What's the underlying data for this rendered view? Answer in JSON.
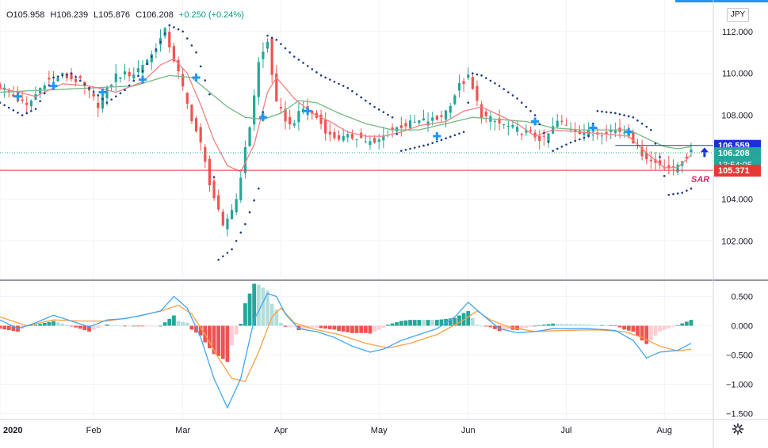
{
  "header": {
    "open": "O105.958",
    "high": "H106.239",
    "low": "L105.876",
    "close": "C106.208",
    "change": "+0.250 (+0.24%)"
  },
  "currency_label": "JPY",
  "price_axis": {
    "ticks": [
      "112.000",
      "110.000",
      "108.000",
      "106.000",
      "104.000",
      "102.000"
    ],
    "tick_values": [
      112,
      110,
      108,
      106,
      104,
      102
    ],
    "range": [
      100.2,
      113.2
    ]
  },
  "price_labels": {
    "ma_value": "106.559",
    "last_price": "106.208",
    "countdown": "13:54:05",
    "sar_value": "105.371",
    "sar_tag": "SAR"
  },
  "macd_axis": {
    "ticks": [
      "0.500",
      "0.000",
      "−0.500",
      "−1.000",
      "−1.500"
    ],
    "tick_values": [
      0.5,
      0,
      -0.5,
      -1.0,
      -1.5
    ],
    "range": [
      -1.6,
      0.75
    ]
  },
  "time_axis": {
    "labels": [
      "2020",
      "Feb",
      "Mar",
      "Apr",
      "May",
      "Jun",
      "Jul",
      "Aug"
    ],
    "label_index": [
      0,
      21,
      41,
      63,
      85,
      105,
      127,
      149
    ]
  },
  "colors": {
    "up": "#26a69a",
    "down": "#ef5350",
    "fast_ma": "#f08080",
    "slow_ma": "#74b882",
    "sar": "#1e3a8a",
    "macd": "#42a5f5",
    "signal": "#ff9f43",
    "hist_up_strong": "#26a69a",
    "hist_up_weak": "#b2dfdb",
    "hist_down_strong": "#ef5350",
    "hist_down_weak": "#ffcdd2",
    "marker": "#2196f3",
    "horizontal_line": "#e53935",
    "trend_line": "#1e2fd8"
  },
  "chart_data": {
    "type": "candlestick",
    "x_unit": "trading day (Jan 2020 – Aug 2020)",
    "anchors_close": [
      [
        0,
        109.4
      ],
      [
        6,
        108.4
      ],
      [
        10,
        109.6
      ],
      [
        14,
        109.9
      ],
      [
        18,
        109.6
      ],
      [
        22,
        108.5
      ],
      [
        26,
        109.9
      ],
      [
        30,
        110.0
      ],
      [
        34,
        110.9
      ],
      [
        37,
        112.0
      ],
      [
        40,
        110.0
      ],
      [
        42,
        108.5
      ],
      [
        45,
        106.6
      ],
      [
        47,
        104.8
      ],
      [
        50,
        102.6
      ],
      [
        53,
        104.0
      ],
      [
        56,
        107.5
      ],
      [
        58,
        110.5
      ],
      [
        60,
        111.5
      ],
      [
        62,
        108.5
      ],
      [
        65,
        107.5
      ],
      [
        68,
        108.3
      ],
      [
        71,
        107.9
      ],
      [
        74,
        107.0
      ],
      [
        77,
        106.9
      ],
      [
        80,
        107.0
      ],
      [
        84,
        106.6
      ],
      [
        87,
        107.2
      ],
      [
        90,
        107.5
      ],
      [
        94,
        107.7
      ],
      [
        98,
        107.8
      ],
      [
        100,
        108.2
      ],
      [
        103,
        109.4
      ],
      [
        105,
        109.8
      ],
      [
        108,
        108.0
      ],
      [
        112,
        107.6
      ],
      [
        116,
        107.3
      ],
      [
        119,
        107.1
      ],
      [
        122,
        106.8
      ],
      [
        125,
        107.7
      ],
      [
        129,
        107.3
      ],
      [
        133,
        107.1
      ],
      [
        137,
        107.3
      ],
      [
        141,
        107.2
      ],
      [
        143,
        106.4
      ],
      [
        146,
        105.8
      ],
      [
        149,
        105.6
      ],
      [
        151,
        105.4
      ],
      [
        153,
        105.9
      ],
      [
        155,
        106.2
      ]
    ],
    "fast_ma_anchors": [
      [
        0,
        109.3
      ],
      [
        8,
        108.9
      ],
      [
        14,
        109.5
      ],
      [
        20,
        109.4
      ],
      [
        26,
        109.1
      ],
      [
        32,
        109.6
      ],
      [
        36,
        110.4
      ],
      [
        39,
        110.7
      ],
      [
        42,
        110.0
      ],
      [
        45,
        108.5
      ],
      [
        48,
        106.8
      ],
      [
        51,
        105.6
      ],
      [
        54,
        105.3
      ],
      [
        57,
        106.6
      ],
      [
        60,
        109.1
      ],
      [
        62,
        109.8
      ],
      [
        66,
        108.8
      ],
      [
        70,
        108.1
      ],
      [
        74,
        107.7
      ],
      [
        78,
        107.2
      ],
      [
        82,
        107.0
      ],
      [
        86,
        107.0
      ],
      [
        90,
        107.2
      ],
      [
        94,
        107.5
      ],
      [
        100,
        107.7
      ],
      [
        104,
        108.2
      ],
      [
        108,
        108.4
      ],
      [
        112,
        108.0
      ],
      [
        116,
        107.6
      ],
      [
        120,
        107.0
      ],
      [
        124,
        107.3
      ],
      [
        130,
        107.2
      ],
      [
        136,
        107.1
      ],
      [
        141,
        107.0
      ],
      [
        145,
        106.2
      ],
      [
        149,
        105.5
      ],
      [
        152,
        105.5
      ],
      [
        155,
        106.1
      ]
    ],
    "slow_ma_anchors": [
      [
        0,
        109.1
      ],
      [
        10,
        109.2
      ],
      [
        20,
        109.3
      ],
      [
        30,
        109.4
      ],
      [
        38,
        109.9
      ],
      [
        43,
        109.8
      ],
      [
        47,
        109.1
      ],
      [
        51,
        108.4
      ],
      [
        55,
        107.9
      ],
      [
        59,
        107.8
      ],
      [
        63,
        108.1
      ],
      [
        67,
        108.7
      ],
      [
        71,
        108.6
      ],
      [
        76,
        108.1
      ],
      [
        82,
        107.6
      ],
      [
        88,
        107.3
      ],
      [
        94,
        107.3
      ],
      [
        100,
        107.6
      ],
      [
        106,
        107.9
      ],
      [
        112,
        107.8
      ],
      [
        118,
        107.7
      ],
      [
        124,
        107.4
      ],
      [
        130,
        107.3
      ],
      [
        136,
        107.3
      ],
      [
        141,
        107.3
      ],
      [
        145,
        106.9
      ],
      [
        149,
        106.5
      ],
      [
        152,
        106.4
      ],
      [
        155,
        106.5
      ]
    ],
    "sar_anchors": [
      [
        0,
        108.6
      ],
      [
        5,
        108.0
      ],
      [
        8,
        108.3
      ],
      [
        12,
        109.8
      ],
      [
        16,
        110.0
      ],
      [
        20,
        109.3
      ],
      [
        24,
        108.6
      ],
      [
        28,
        109.2
      ],
      [
        32,
        110.1
      ],
      [
        36,
        111.5
      ],
      [
        38,
        112.3
      ],
      [
        41,
        112.0
      ],
      [
        44,
        111.0
      ],
      [
        47,
        109.0
      ],
      [
        49,
        101.1
      ],
      [
        52,
        101.6
      ],
      [
        55,
        102.8
      ],
      [
        58,
        104.5
      ],
      [
        60,
        111.8
      ],
      [
        62,
        111.6
      ],
      [
        66,
        110.8
      ],
      [
        72,
        109.9
      ],
      [
        78,
        109.3
      ],
      [
        84,
        108.4
      ],
      [
        88,
        107.9
      ],
      [
        90,
        106.3
      ],
      [
        96,
        106.6
      ],
      [
        100,
        106.9
      ],
      [
        104,
        107.2
      ],
      [
        106,
        110.0
      ],
      [
        108,
        109.9
      ],
      [
        112,
        109.4
      ],
      [
        116,
        108.8
      ],
      [
        120,
        108.0
      ],
      [
        124,
        106.3
      ],
      [
        128,
        106.7
      ],
      [
        132,
        107.0
      ],
      [
        134,
        108.2
      ],
      [
        138,
        108.1
      ],
      [
        142,
        107.9
      ],
      [
        146,
        107.3
      ],
      [
        148,
        106.0
      ],
      [
        150,
        104.2
      ],
      [
        153,
        104.3
      ],
      [
        155,
        104.5
      ]
    ],
    "markers": [
      {
        "x": 4,
        "y": 108.9
      },
      {
        "x": 12,
        "y": 109.4
      },
      {
        "x": 23,
        "y": 109.1
      },
      {
        "x": 32,
        "y": 109.7
      },
      {
        "x": 44,
        "y": 109.8
      },
      {
        "x": 59,
        "y": 107.9
      },
      {
        "x": 69,
        "y": 108.2
      },
      {
        "x": 98,
        "y": 107.0
      },
      {
        "x": 120,
        "y": 107.7
      },
      {
        "x": 133,
        "y": 107.4
      },
      {
        "x": 141,
        "y": 107.2
      }
    ],
    "arrow": {
      "x": 158,
      "y": 106.2
    },
    "horizontal_level": 105.371,
    "macd_anchors": [
      [
        0,
        0.1
      ],
      [
        4,
        -0.05
      ],
      [
        8,
        0.05
      ],
      [
        12,
        0.18
      ],
      [
        16,
        0.08
      ],
      [
        20,
        -0.02
      ],
      [
        24,
        0.1
      ],
      [
        28,
        0.12
      ],
      [
        32,
        0.18
      ],
      [
        36,
        0.25
      ],
      [
        39,
        0.5
      ],
      [
        42,
        0.3
      ],
      [
        45,
        -0.2
      ],
      [
        48,
        -0.9
      ],
      [
        51,
        -1.4
      ],
      [
        54,
        -0.9
      ],
      [
        57,
        0.1
      ],
      [
        60,
        0.55
      ],
      [
        62,
        0.5
      ],
      [
        64,
        0.2
      ],
      [
        67,
        -0.05
      ],
      [
        71,
        -0.1
      ],
      [
        75,
        -0.2
      ],
      [
        79,
        -0.35
      ],
      [
        83,
        -0.45
      ],
      [
        86,
        -0.4
      ],
      [
        90,
        -0.25
      ],
      [
        94,
        -0.15
      ],
      [
        98,
        -0.05
      ],
      [
        102,
        0.15
      ],
      [
        105,
        0.4
      ],
      [
        108,
        0.2
      ],
      [
        112,
        -0.05
      ],
      [
        116,
        -0.12
      ],
      [
        120,
        -0.1
      ],
      [
        124,
        -0.05
      ],
      [
        128,
        -0.05
      ],
      [
        132,
        -0.05
      ],
      [
        138,
        -0.08
      ],
      [
        142,
        -0.25
      ],
      [
        145,
        -0.55
      ],
      [
        148,
        -0.45
      ],
      [
        152,
        -0.42
      ],
      [
        155,
        -0.3
      ]
    ],
    "signal_anchors": [
      [
        0,
        0.15
      ],
      [
        6,
        0.0
      ],
      [
        12,
        0.1
      ],
      [
        18,
        0.08
      ],
      [
        24,
        0.08
      ],
      [
        30,
        0.15
      ],
      [
        36,
        0.25
      ],
      [
        40,
        0.35
      ],
      [
        43,
        0.2
      ],
      [
        46,
        -0.15
      ],
      [
        49,
        -0.55
      ],
      [
        52,
        -0.9
      ],
      [
        55,
        -0.95
      ],
      [
        58,
        -0.45
      ],
      [
        61,
        0.15
      ],
      [
        63,
        0.3
      ],
      [
        66,
        0.05
      ],
      [
        70,
        -0.05
      ],
      [
        76,
        -0.15
      ],
      [
        82,
        -0.3
      ],
      [
        87,
        -0.38
      ],
      [
        92,
        -0.3
      ],
      [
        98,
        -0.15
      ],
      [
        104,
        0.1
      ],
      [
        107,
        0.25
      ],
      [
        110,
        0.1
      ],
      [
        114,
        -0.02
      ],
      [
        120,
        -0.1
      ],
      [
        126,
        -0.08
      ],
      [
        134,
        -0.07
      ],
      [
        140,
        -0.1
      ],
      [
        144,
        -0.2
      ],
      [
        148,
        -0.35
      ],
      [
        152,
        -0.43
      ],
      [
        155,
        -0.4
      ]
    ]
  }
}
